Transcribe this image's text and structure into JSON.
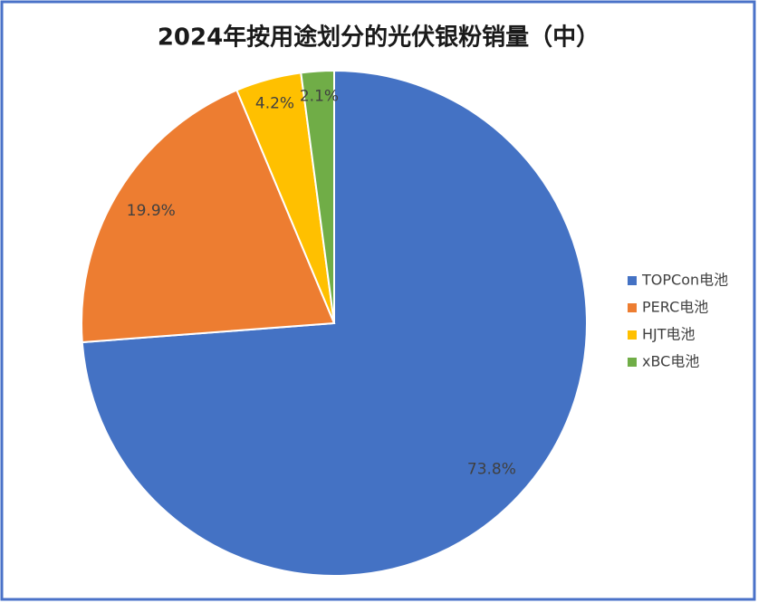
{
  "chart_data": {
    "type": "pie",
    "title": "2024年按用途划分的光伏银粉销量（中）",
    "categories": [
      "TOPCon电池",
      "PERC电池",
      "HJT电池",
      "xBC电池"
    ],
    "values": [
      73.8,
      19.9,
      4.2,
      2.1
    ],
    "value_labels": [
      "73.8%",
      "19.9%",
      "4.2%",
      "2.1%"
    ],
    "colors": [
      "#4472c4",
      "#ed7d31",
      "#ffc000",
      "#70ad47"
    ],
    "legend": "right"
  }
}
